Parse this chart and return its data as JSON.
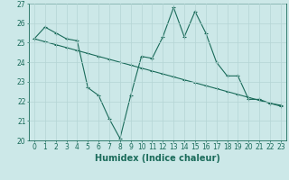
{
  "xlabel": "Humidex (Indice chaleur)",
  "x": [
    0,
    1,
    2,
    3,
    4,
    5,
    6,
    7,
    8,
    9,
    10,
    11,
    12,
    13,
    14,
    15,
    16,
    17,
    18,
    19,
    20,
    21,
    22,
    23
  ],
  "y_curve": [
    25.2,
    25.8,
    25.5,
    25.2,
    25.1,
    22.7,
    22.3,
    21.1,
    20.1,
    22.3,
    24.3,
    24.2,
    25.3,
    26.8,
    25.3,
    26.6,
    25.5,
    24.0,
    23.3,
    23.3,
    22.1,
    22.1,
    21.9,
    21.8
  ],
  "y_linear": [
    25.2,
    25.05,
    24.9,
    24.75,
    24.6,
    24.45,
    24.3,
    24.15,
    24.0,
    23.85,
    23.7,
    23.55,
    23.4,
    23.25,
    23.1,
    22.95,
    22.8,
    22.65,
    22.5,
    22.35,
    22.2,
    22.05,
    21.9,
    21.75
  ],
  "line_color": "#1a6b5a",
  "bg_color": "#cce8e8",
  "grid_color": "#b5d5d5",
  "ylim": [
    20,
    27
  ],
  "xlim": [
    -0.5,
    23.5
  ],
  "yticks": [
    20,
    21,
    22,
    23,
    24,
    25,
    26,
    27
  ],
  "xticks": [
    0,
    1,
    2,
    3,
    4,
    5,
    6,
    7,
    8,
    9,
    10,
    11,
    12,
    13,
    14,
    15,
    16,
    17,
    18,
    19,
    20,
    21,
    22,
    23
  ],
  "tick_fontsize": 5.5,
  "xlabel_fontsize": 7
}
